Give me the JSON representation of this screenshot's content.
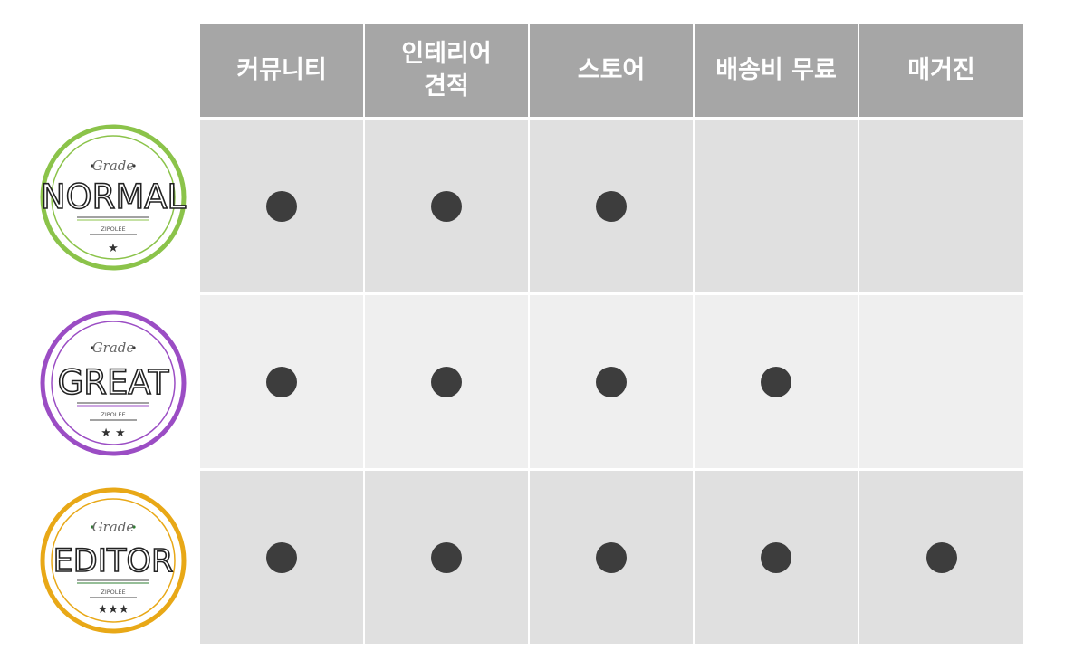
{
  "columns": [
    {
      "label": "커뮤니티"
    },
    {
      "label": "인테리어\n견적"
    },
    {
      "label": "스토어"
    },
    {
      "label": "배송비 무료"
    },
    {
      "label": "매거진"
    }
  ],
  "tiers": [
    {
      "badge": {
        "grade": "Grade",
        "name": "NORMAL",
        "brand": "ZIPOLEE",
        "stars": "★",
        "color": "#8bc34a"
      },
      "row_bg": "#e0e0e0",
      "benefits": [
        true,
        true,
        true,
        false,
        false
      ]
    },
    {
      "badge": {
        "grade": "Grade",
        "name": "GREAT",
        "brand": "ZIPOLEE",
        "stars": "★ ★",
        "color": "#9b4dc4"
      },
      "row_bg": "#efefef",
      "benefits": [
        true,
        true,
        true,
        true,
        false
      ]
    },
    {
      "badge": {
        "grade": "Grade",
        "name": "EDITOR",
        "brand": "ZIPOLEE",
        "stars": "★★★",
        "color": "#e8a817"
      },
      "row_bg": "#e0e0e0",
      "benefits": [
        true,
        true,
        true,
        true,
        true
      ]
    }
  ],
  "colors": {
    "header_bg": "#a6a6a6",
    "header_text": "#ffffff",
    "dot": "#3d3d3d",
    "divider": "#ffffff"
  }
}
